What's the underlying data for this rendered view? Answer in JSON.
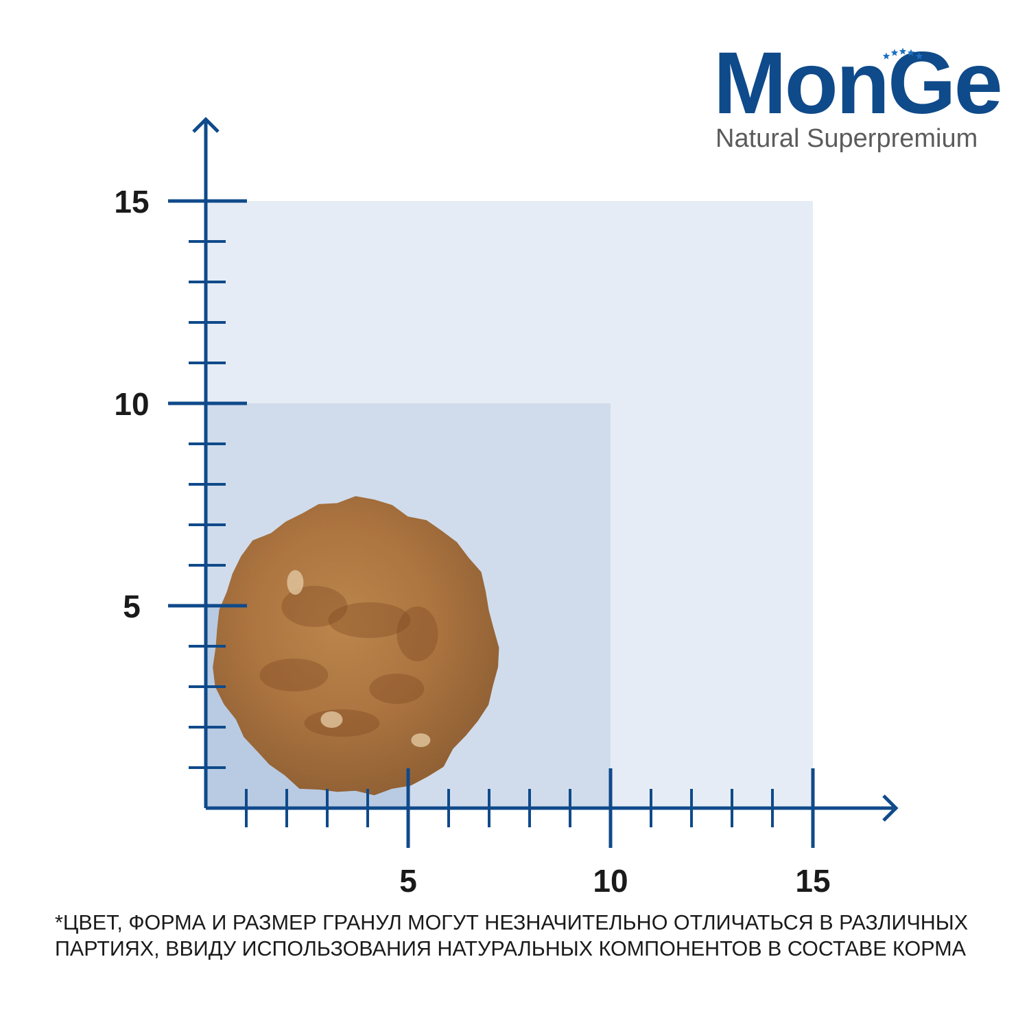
{
  "brand": {
    "name": "MonGe",
    "tagline": "Natural Superpremium",
    "logo_color": "#0f4a8a",
    "star_color": "#1a6fc0"
  },
  "chart_data": {
    "type": "scatter",
    "x_ticks": [
      "5",
      "10",
      "15"
    ],
    "y_ticks": [
      "5",
      "10",
      "15"
    ],
    "xlim": [
      0,
      15
    ],
    "ylim": [
      0,
      15
    ],
    "minor_tick_step": 1,
    "regions": [
      {
        "x": [
          0,
          15
        ],
        "y": [
          0,
          15
        ],
        "color": "#e5ecf5"
      },
      {
        "x": [
          0,
          10
        ],
        "y": [
          0,
          10
        ],
        "color": "#d0dcec"
      },
      {
        "x": [
          0,
          5
        ],
        "y": [
          0,
          5
        ],
        "color": "#b8cbe3"
      }
    ],
    "kibble": {
      "center_x": 3.6,
      "center_y": 4,
      "diameter": 7,
      "color": "#b7763a",
      "shape": "round-pellet"
    },
    "axis_color": "#0f4a8a",
    "grid": false
  },
  "disclaimer": {
    "line1": "*ЦВЕТ, ФОРМА И РАЗМЕР ГРАНУЛ МОГУТ НЕЗНАЧИТЕЛЬНО ОТЛИЧАТЬСЯ  В РАЗЛИЧНЫХ",
    "line2": "ПАРТИЯХ, ВВИДУ ИСПОЛЬЗОВАНИЯ НАТУРАЛЬНЫХ КОМПОНЕНТОВ В СОСТАВЕ  КОРМА"
  }
}
